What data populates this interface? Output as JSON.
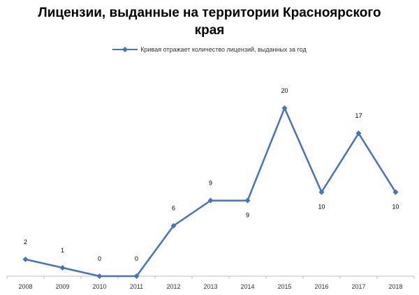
{
  "chart_data": {
    "type": "line",
    "title": "Лицензии, выданные на территории Красноярского края",
    "categories": [
      "2008",
      "2009",
      "2010",
      "2011",
      "2012",
      "2013",
      "2014",
      "2015",
      "2016",
      "2017",
      "2018"
    ],
    "series": [
      {
        "name": "Кривая отражает количество лицензий, выданных за год",
        "values": [
          2,
          1,
          0,
          0,
          6,
          9,
          9,
          20,
          10,
          17,
          10
        ],
        "color": "#4472C4"
      }
    ],
    "data_labels": [
      "2",
      "1",
      "0",
      "0",
      "6",
      "9",
      "9",
      "20",
      "10",
      "17",
      "10"
    ],
    "ylim": [
      0,
      20
    ],
    "grid": false,
    "legend": "top-center"
  }
}
